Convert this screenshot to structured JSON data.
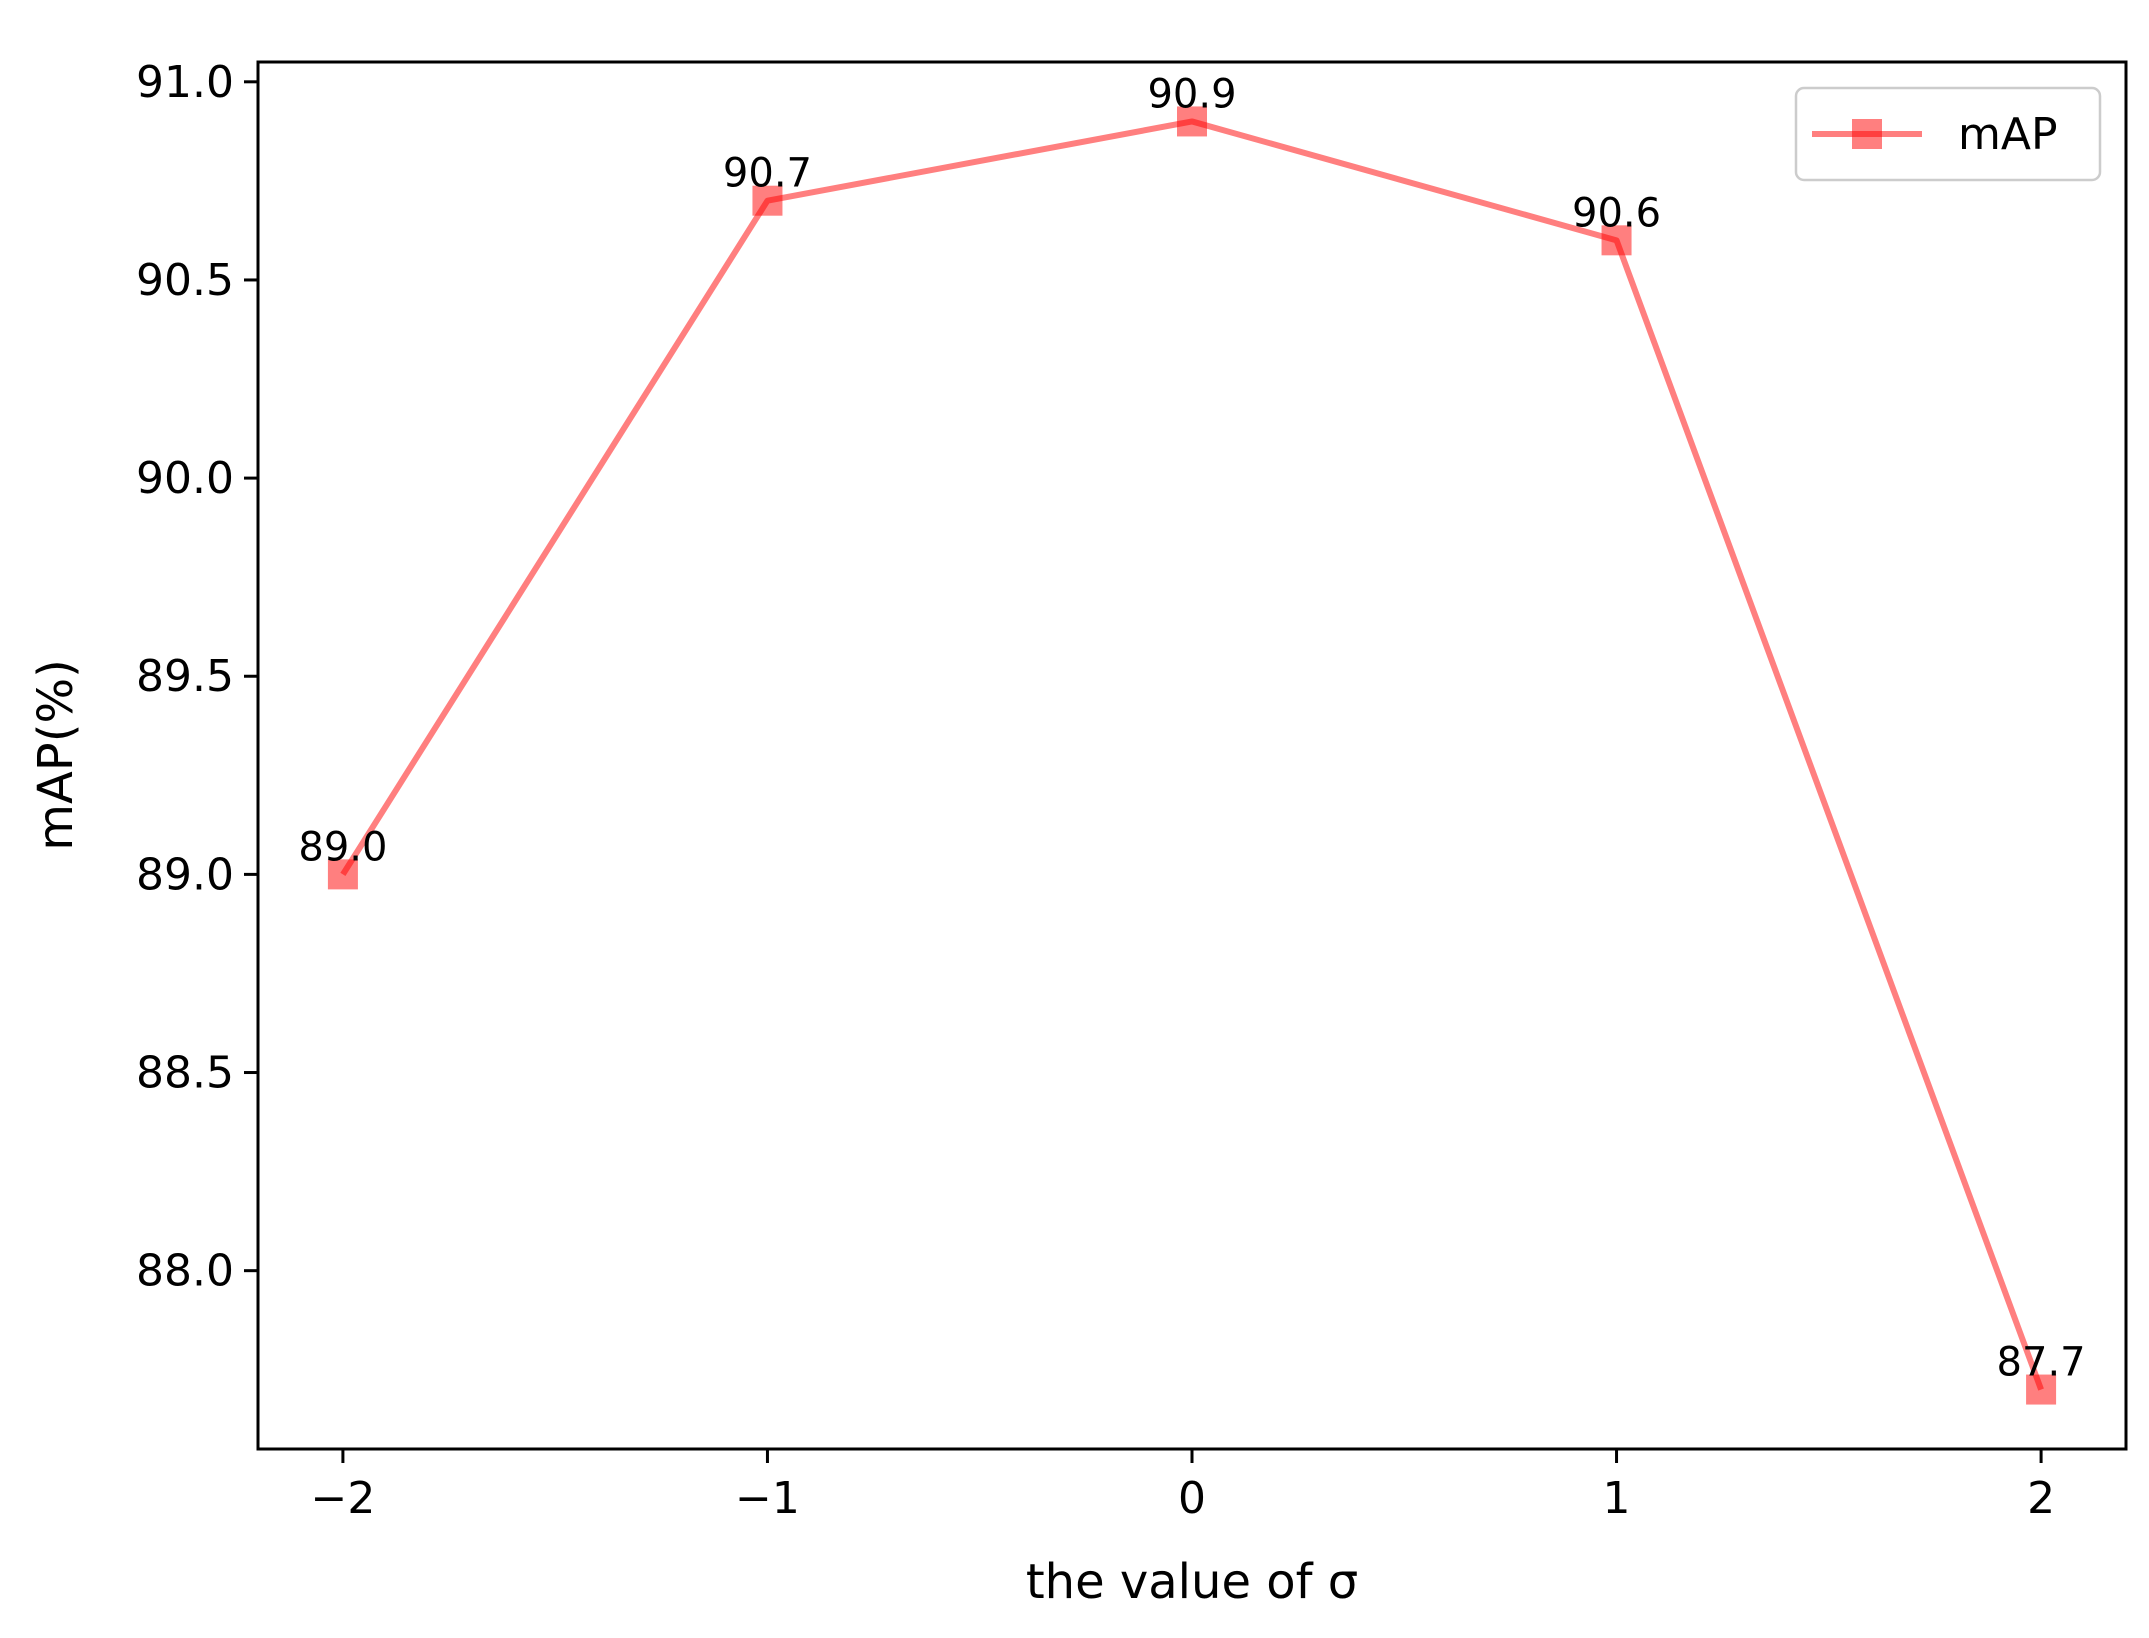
{
  "chart_data": {
    "type": "line",
    "title": "",
    "xlabel": "the value of σ",
    "ylabel": "mAP(%)",
    "x": [
      -2,
      -1,
      0,
      1,
      2
    ],
    "x_tick_labels": [
      "−2",
      "−1",
      "0",
      "1",
      "2"
    ],
    "xlim": [
      -2.2,
      2.2
    ],
    "ylim": [
      87.55,
      91.05
    ],
    "y_ticks": [
      88.0,
      88.5,
      89.0,
      89.5,
      90.0,
      90.5,
      91.0
    ],
    "y_tick_labels": [
      "88.0",
      "88.5",
      "89.0",
      "89.5",
      "90.0",
      "90.5",
      "91.0"
    ],
    "grid": false,
    "legend_position": "top-right",
    "series": [
      {
        "name": "mAP",
        "values": [
          89.0,
          90.7,
          90.9,
          90.6,
          87.7
        ],
        "data_labels": [
          "89.0",
          "90.7",
          "90.9",
          "90.6",
          "87.7"
        ],
        "color": "#ff0000",
        "marker": "square"
      }
    ]
  }
}
